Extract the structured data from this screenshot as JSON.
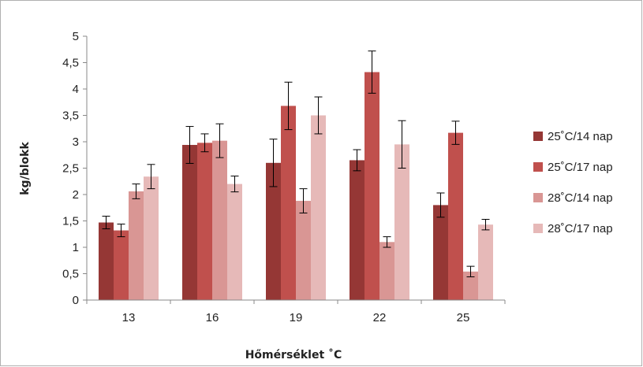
{
  "chart_data": {
    "type": "bar",
    "xlabel": "Hőmérséklet ˚C",
    "ylabel": "kg/blokk",
    "categories": [
      "13",
      "16",
      "19",
      "22",
      "25"
    ],
    "ylim": [
      0,
      5
    ],
    "yticks": [
      "0",
      "0,5",
      "1",
      "1,5",
      "2",
      "2,5",
      "3",
      "3,5",
      "4",
      "4,5",
      "5"
    ],
    "grid": false,
    "legend_position": "right",
    "series": [
      {
        "name": "25˚C/14 nap",
        "color": "#953735",
        "values": [
          1.47,
          2.94,
          2.6,
          2.65,
          1.8
        ],
        "errors": [
          0.12,
          0.35,
          0.45,
          0.2,
          0.23
        ]
      },
      {
        "name": "25˚C/17 nap",
        "color": "#c0504d",
        "values": [
          1.32,
          2.98,
          3.68,
          4.32,
          3.17
        ],
        "errors": [
          0.12,
          0.17,
          0.45,
          0.4,
          0.22
        ]
      },
      {
        "name": "28˚C/14 nap",
        "color": "#d99694",
        "values": [
          2.06,
          3.02,
          1.88,
          1.1,
          0.54
        ],
        "errors": [
          0.14,
          0.32,
          0.23,
          0.1,
          0.1
        ]
      },
      {
        "name": "28˚C/17 nap",
        "color": "#e6b9b8",
        "values": [
          2.34,
          2.2,
          3.5,
          2.95,
          1.43
        ],
        "errors": [
          0.23,
          0.15,
          0.35,
          0.45,
          0.1
        ]
      }
    ]
  }
}
